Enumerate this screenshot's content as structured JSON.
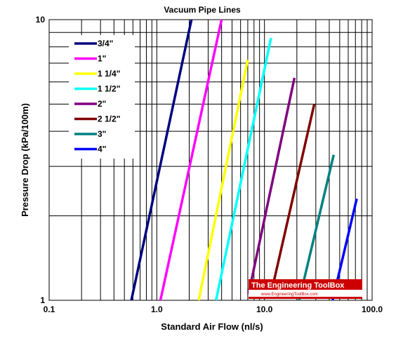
{
  "chart_data": {
    "type": "line",
    "title": "Vacuum Pipe Lines",
    "xlabel": "Standard Air Flow (nl/s)",
    "ylabel": "Pressure Drop (kPa/100m)",
    "xscale": "log",
    "yscale": "log",
    "xlim": [
      0.1,
      100.0
    ],
    "ylim": [
      1,
      10
    ],
    "x_ticks": [
      "0.1",
      "1.0",
      "10.0",
      "100.0"
    ],
    "y_ticks": [
      "1",
      "10"
    ],
    "grid": true,
    "legend_position": "top-left",
    "series": [
      {
        "name": "3/4\"",
        "color": "#000080",
        "x": [
          0.58,
          2.1
        ],
        "y": [
          1,
          10
        ]
      },
      {
        "name": "1\"",
        "color": "#ff00ff",
        "x": [
          1.08,
          4.0
        ],
        "y": [
          1,
          10
        ]
      },
      {
        "name": "1 1/4\"",
        "color": "#ffff00",
        "x": [
          2.45,
          7.0
        ],
        "y": [
          1,
          7.2
        ]
      },
      {
        "name": "1 1/2\"",
        "color": "#00ffff",
        "x": [
          3.55,
          11.5
        ],
        "y": [
          1,
          8.6
        ]
      },
      {
        "name": "2\"",
        "color": "#800080",
        "x": [
          7.1,
          19.0
        ],
        "y": [
          1.05,
          6.2
        ]
      },
      {
        "name": "2 1/2\"",
        "color": "#800000",
        "x": [
          11.8,
          29.0
        ],
        "y": [
          1.1,
          5.0
        ]
      },
      {
        "name": "3\"",
        "color": "#008080",
        "x": [
          21.0,
          44.0
        ],
        "y": [
          1,
          3.3
        ]
      },
      {
        "name": "4\"",
        "color": "#0000ff",
        "x": [
          43.0,
          72.0
        ],
        "y": [
          1,
          2.3
        ]
      }
    ]
  },
  "watermark": {
    "title": "The Engineering ToolBox",
    "subtitle": "www.EngineeringToolBox.com"
  }
}
